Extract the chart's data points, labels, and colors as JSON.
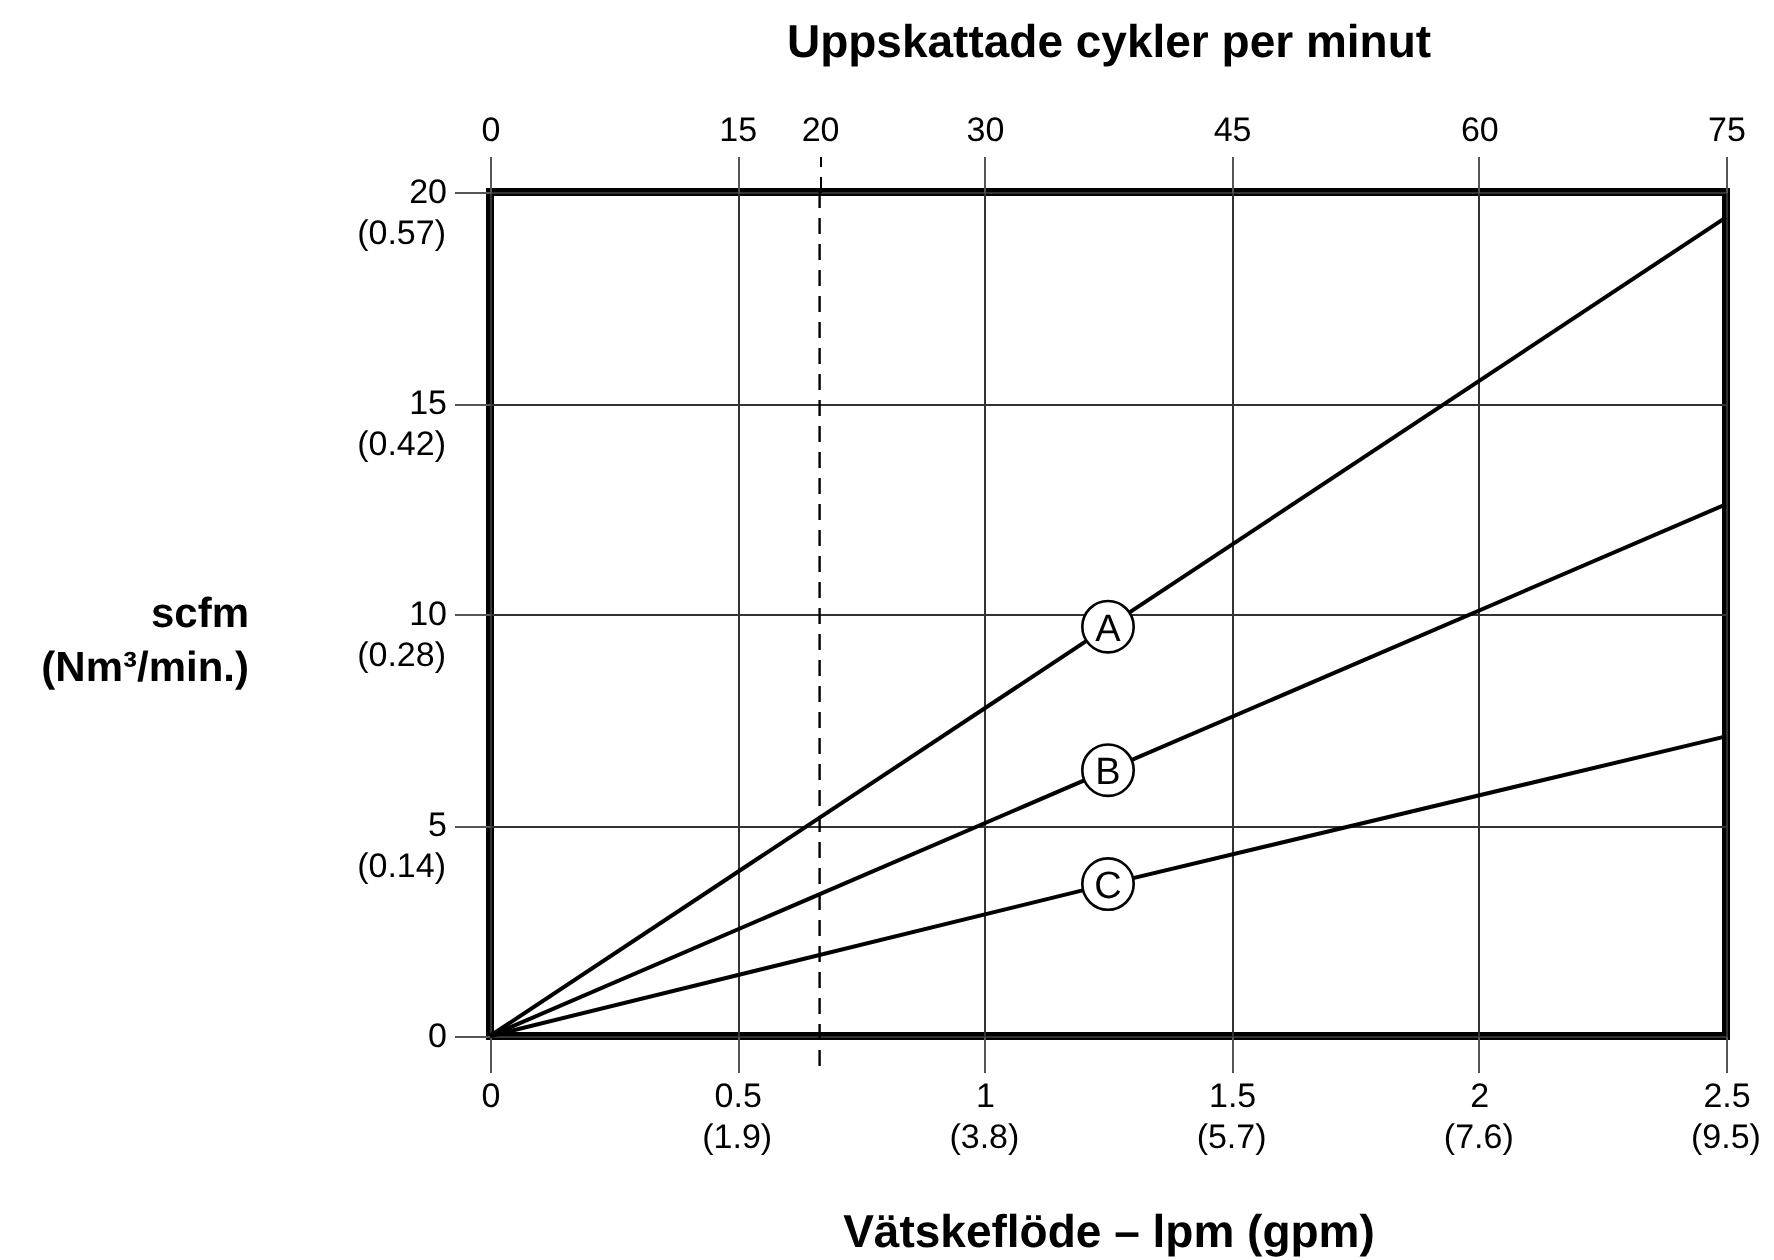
{
  "chart_data": {
    "type": "line",
    "xlabel": "Vätskeflöde – lpm (gpm)",
    "ylabel": "scfm\n(Nm³/min.)",
    "x2label": "Uppskattade cykler per minut",
    "x": [
      0,
      1.25,
      2.5
    ],
    "series": [
      {
        "name": "A",
        "color": "#000000",
        "values": [
          0,
          9.7,
          19.4
        ]
      },
      {
        "name": "B",
        "color": "#000000",
        "values": [
          0,
          6.3,
          12.6
        ]
      },
      {
        "name": "C",
        "color": "#000000",
        "values": [
          0,
          3.6,
          7.1
        ]
      }
    ],
    "xlim": [
      0,
      2.5
    ],
    "xticks": [
      0,
      0.5,
      1,
      1.5,
      2,
      2.5
    ],
    "ylim": [
      0,
      20
    ],
    "yticks": [
      0,
      5,
      10,
      15,
      20
    ],
    "x2lim": [
      0,
      75
    ],
    "x2ticks": [
      0,
      15,
      20,
      30,
      45,
      60,
      75
    ],
    "ref_lines": [
      {
        "axis": "x2",
        "value": 20,
        "color": "#000000",
        "line_style": "dashed"
      }
    ],
    "annotations": [
      "(1.9)",
      "(3.8)",
      "(5.7)",
      "(7.6)",
      "(9.5)",
      "(0.14)",
      "(0.28)",
      "(0.42)",
      "(0.57)"
    ],
    "grid": true
  }
}
